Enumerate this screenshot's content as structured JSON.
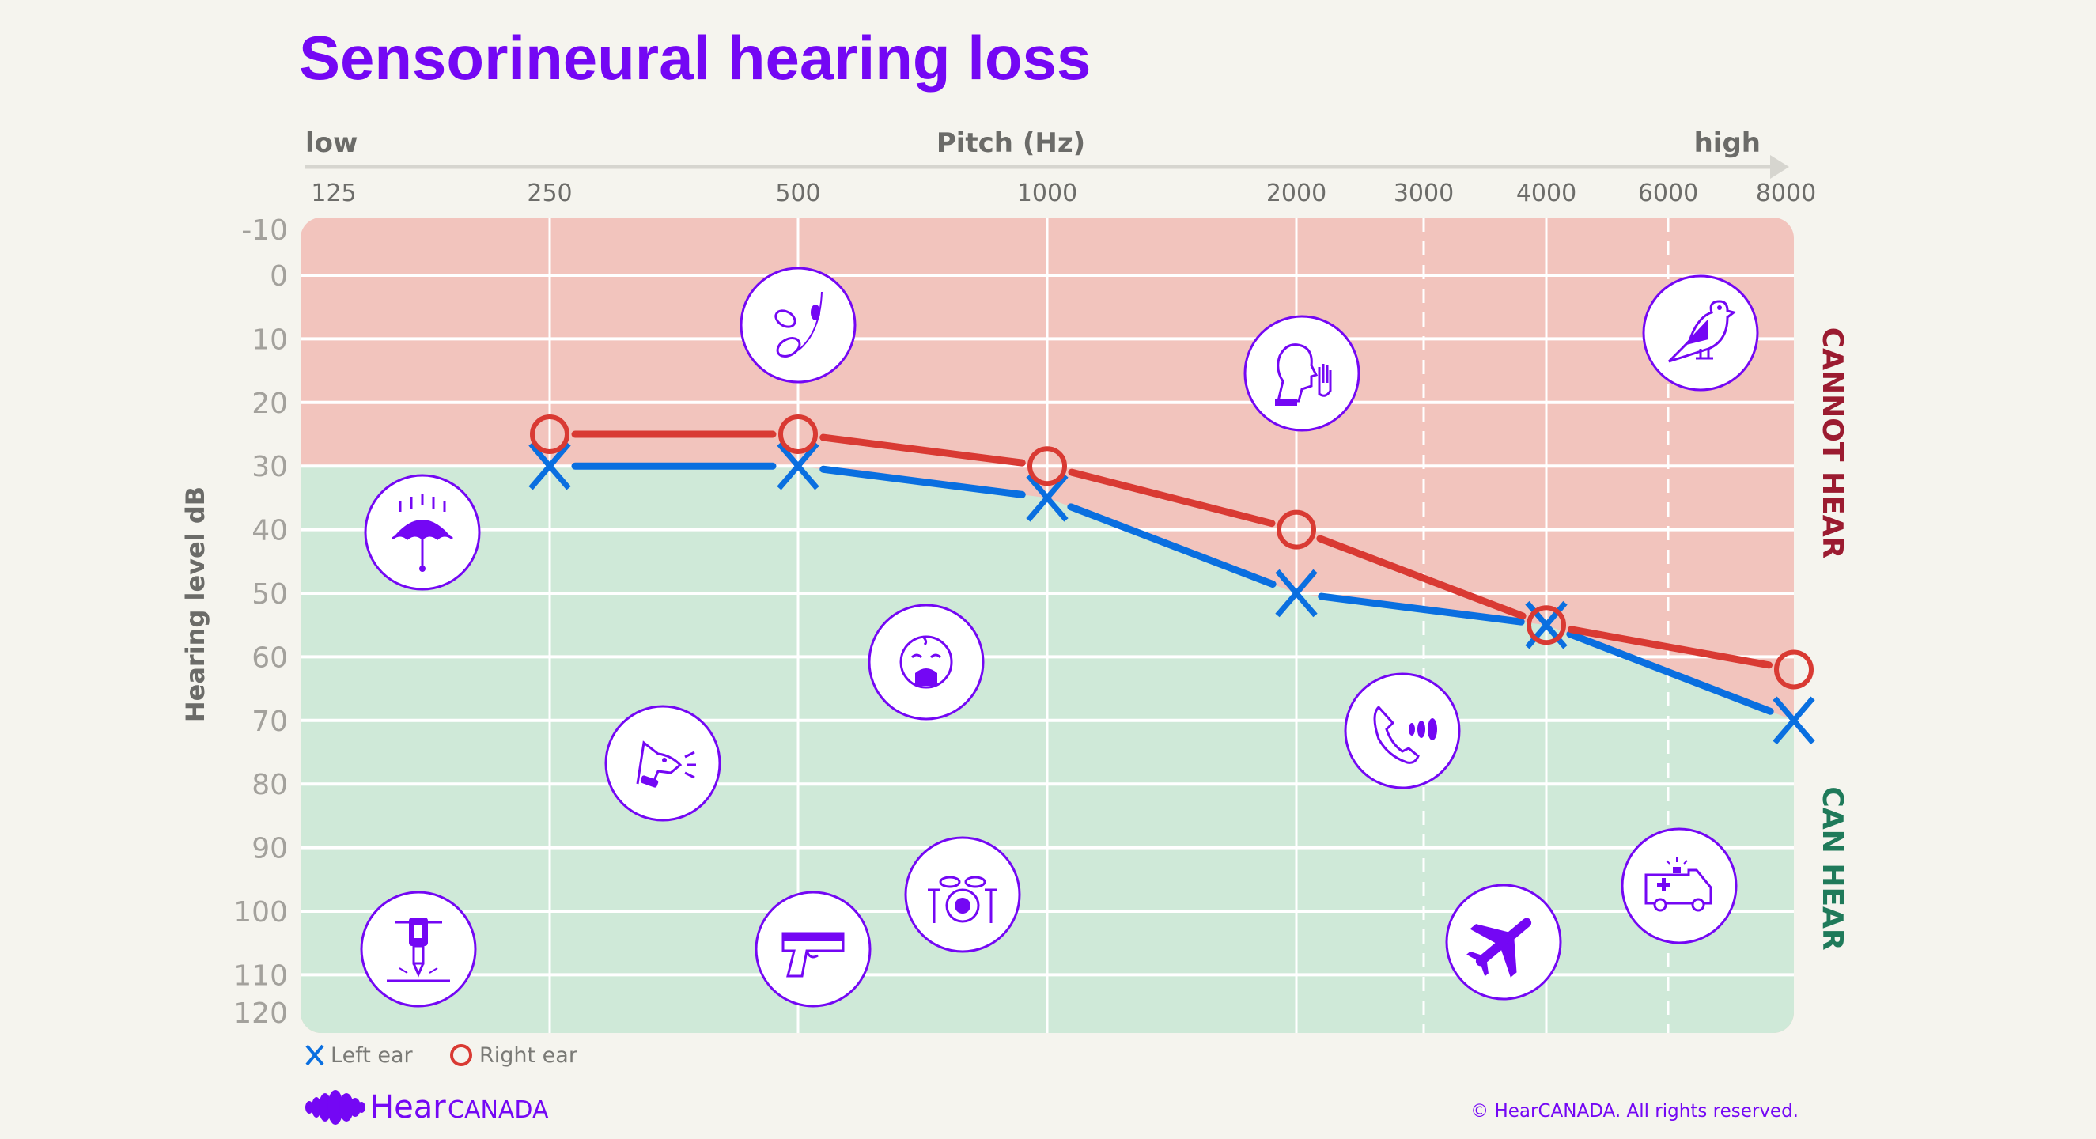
{
  "title": "Sensorineural hearing loss",
  "colors": {
    "title": "#7407f4",
    "cannot_hear_zone": "#f2c4bd",
    "can_hear_zone": "#cfe9d8",
    "left_ear": "#0a6fe0",
    "right_ear": "#d93a33",
    "icon": "#7407f4",
    "cannot_hear_text": "#9b1b30",
    "can_hear_text": "#1f7a5a"
  },
  "chart_data": {
    "type": "line",
    "title": "Sensorineural hearing loss",
    "xlabel": "Pitch (Hz)",
    "x_low_label": "low",
    "x_high_label": "high",
    "ylabel": "Hearing level dB",
    "x_scale": "log",
    "y_inverted": true,
    "ylim": [
      -10,
      120
    ],
    "xlim": [
      125,
      8000
    ],
    "x_ticks": [
      125,
      250,
      500,
      1000,
      2000,
      3000,
      4000,
      6000,
      8000
    ],
    "x_tick_labels": [
      "125",
      "250",
      "500",
      "1000",
      "2000",
      "3000",
      "4000",
      "6000",
      "8000"
    ],
    "y_ticks": [
      -10,
      0,
      10,
      20,
      30,
      40,
      50,
      60,
      70,
      80,
      90,
      100,
      110,
      120
    ],
    "y_tick_labels": [
      "-10",
      "0",
      "10",
      "20",
      "30",
      "40",
      "50",
      "60",
      "70",
      "80",
      "90",
      "100",
      "110",
      "120"
    ],
    "grid": true,
    "legend_position": "bottom-left",
    "zones": {
      "upper": "CANNOT HEAR",
      "lower": "CAN HEAR"
    },
    "series": [
      {
        "name": "Left ear",
        "marker": "x",
        "color": "#0a6fe0",
        "x": [
          250,
          500,
          1000,
          2000,
          4000,
          8000
        ],
        "y": [
          30,
          30,
          35,
          50,
          55,
          70
        ]
      },
      {
        "name": "Right ear",
        "marker": "o",
        "color": "#d93a33",
        "x": [
          250,
          500,
          1000,
          2000,
          4000,
          8000
        ],
        "y": [
          25,
          25,
          30,
          40,
          55,
          62
        ]
      }
    ]
  },
  "icons": [
    "umbrella-rain-icon",
    "falling-leaves-icon",
    "whisper-icon",
    "bird-chirping-icon",
    "crying-baby-icon",
    "barking-dog-icon",
    "phone-ringing-icon",
    "drum-kit-icon",
    "jackhammer-icon",
    "gun-icon",
    "airplane-icon",
    "ambulance-icon"
  ],
  "footer": {
    "logo_hear": "Hear",
    "logo_canada": "CANADA",
    "copyright": "© HearCANADA. All rights reserved."
  }
}
